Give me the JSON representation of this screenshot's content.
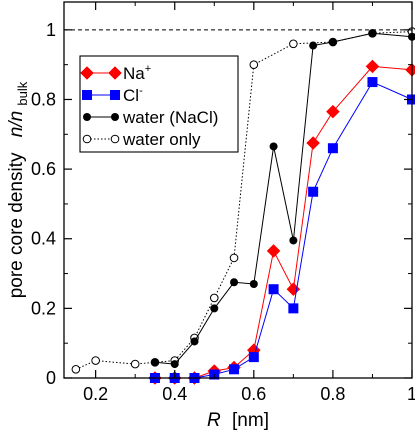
{
  "chart_data": {
    "type": "line",
    "xlabel": "R",
    "xlabel_unit": "[nm]",
    "ylabel": "pore core density",
    "ylabel_ratio_num": "n/n",
    "ylabel_ratio_sub": "bulk",
    "xlim": [
      0.12,
      1.0
    ],
    "ylim": [
      0.0,
      1.08
    ],
    "xticks": [
      0.2,
      0.4,
      0.6,
      0.8,
      1.0
    ],
    "xtick_labels": [
      "0.2",
      "0.4",
      "0.6",
      "0.8",
      "1"
    ],
    "yticks": [
      0.0,
      0.2,
      0.4,
      0.6,
      0.8,
      1.0
    ],
    "ytick_labels": [
      "0",
      "0.2",
      "0.4",
      "0.6",
      "0.8",
      "1"
    ],
    "reference_line_y": 1.0,
    "legend_position": "top-left",
    "series": [
      {
        "name": "Na",
        "name_sup": "+",
        "color": "#ff0000",
        "marker": "diamond",
        "line_style": "solid",
        "x": [
          0.35,
          0.4,
          0.45,
          0.5,
          0.55,
          0.6,
          0.65,
          0.7,
          0.75,
          0.8,
          0.9,
          1.0
        ],
        "y": [
          0.0,
          0.0,
          0.0,
          0.02,
          0.03,
          0.08,
          0.365,
          0.255,
          0.675,
          0.765,
          0.895,
          0.885
        ]
      },
      {
        "name": "Cl",
        "name_sup": "-",
        "color": "#0000ff",
        "marker": "square",
        "line_style": "solid",
        "x": [
          0.35,
          0.4,
          0.45,
          0.5,
          0.55,
          0.6,
          0.65,
          0.7,
          0.75,
          0.8,
          0.9,
          1.0
        ],
        "y": [
          0.0,
          0.0,
          0.0,
          0.01,
          0.025,
          0.06,
          0.255,
          0.2,
          0.535,
          0.66,
          0.85,
          0.8
        ]
      },
      {
        "name": "water (NaCl)",
        "name_sup": "",
        "color": "#000000",
        "marker": "filled-circle",
        "line_style": "solid",
        "x": [
          0.35,
          0.4,
          0.45,
          0.5,
          0.55,
          0.6,
          0.65,
          0.7,
          0.75,
          0.8,
          0.9,
          1.0
        ],
        "y": [
          0.045,
          0.04,
          0.105,
          0.2,
          0.275,
          0.27,
          0.665,
          0.395,
          0.955,
          0.965,
          0.99,
          0.98
        ]
      },
      {
        "name": "water only",
        "name_sup": "",
        "color": "#000000",
        "marker": "open-circle",
        "line_style": "dotted",
        "x": [
          0.15,
          0.2,
          0.3,
          0.35,
          0.4,
          0.45,
          0.5,
          0.55,
          0.6,
          0.7,
          0.8,
          0.9,
          1.0
        ],
        "y": [
          0.025,
          0.05,
          0.04,
          0.045,
          0.05,
          0.115,
          0.23,
          0.345,
          0.9,
          0.96,
          0.965,
          0.99,
          0.995
        ]
      }
    ]
  }
}
